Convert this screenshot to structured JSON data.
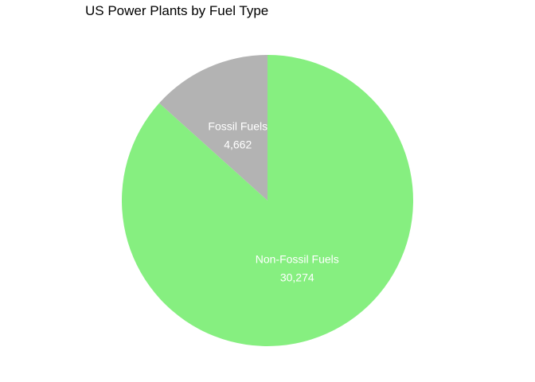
{
  "chart_data": {
    "type": "pie",
    "title": "US Power Plants by Fuel Type",
    "slices": [
      {
        "label": "Fossil Fuels",
        "value": 4662,
        "value_label": "4,662",
        "color": "#b3b3b3"
      },
      {
        "label": "Non-Fossil Fuels",
        "value": 30274,
        "value_label": "30,274",
        "color": "#86ef80"
      }
    ],
    "start": "12 o'clock",
    "direction": "counterclockwise",
    "legend": "none"
  }
}
